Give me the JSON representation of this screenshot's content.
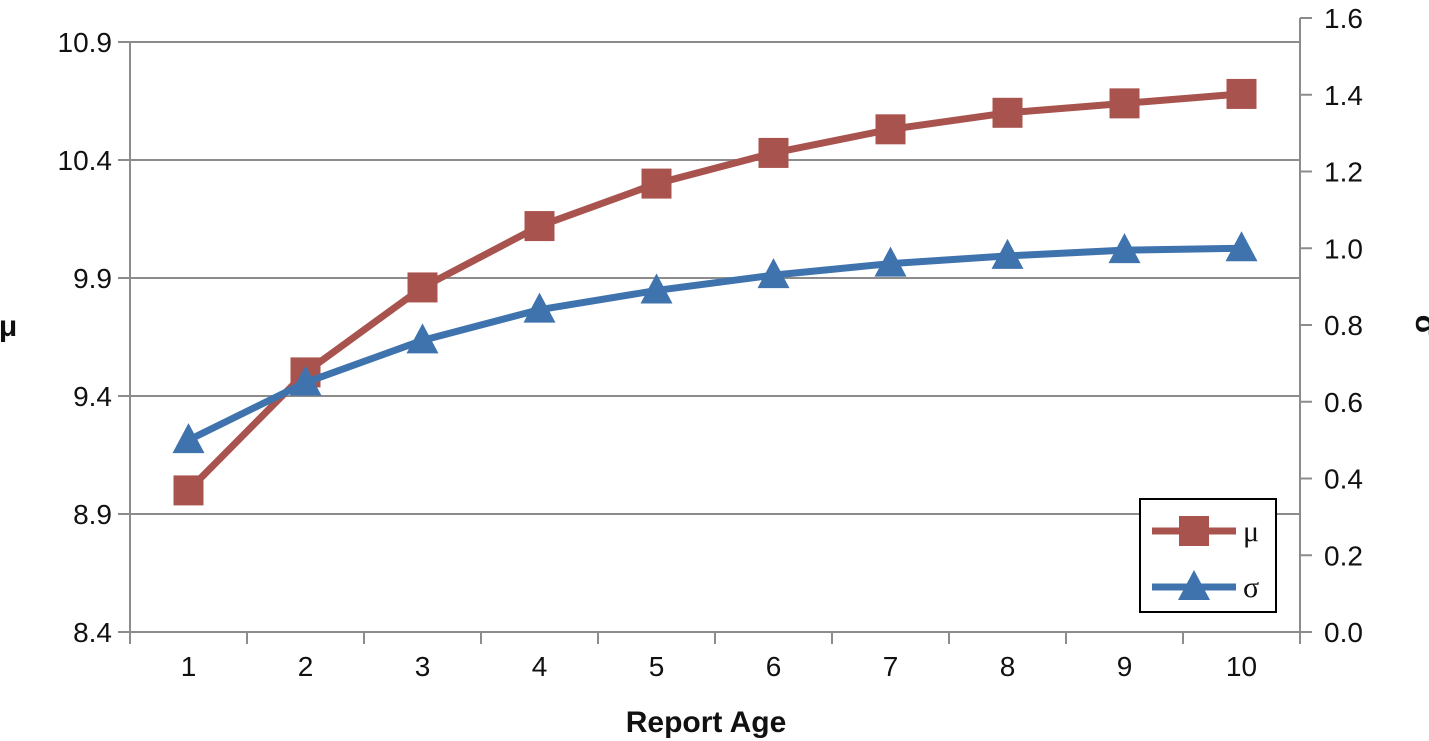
{
  "chart_data": {
    "type": "line",
    "x": [
      1,
      2,
      3,
      4,
      5,
      6,
      7,
      8,
      9,
      10
    ],
    "xlabel": "Report Age",
    "ylabel_left": "μ",
    "ylabel_right": "σ",
    "ylim_left": [
      8.4,
      10.9
    ],
    "ylim_right": [
      0.0,
      1.6
    ],
    "yticks_left": [
      "8.4",
      "8.9",
      "9.4",
      "9.9",
      "10.4",
      "10.9"
    ],
    "yticks_right": [
      "0.0",
      "0.2",
      "0.4",
      "0.6",
      "0.8",
      "1.0",
      "1.2",
      "1.4",
      "1.6"
    ],
    "grid": true,
    "legend_position": "bottom-right",
    "series": [
      {
        "name": "μ",
        "axis": "left",
        "marker": "square",
        "color": "#A9534E",
        "values": [
          9.0,
          9.5,
          9.86,
          10.12,
          10.3,
          10.43,
          10.53,
          10.6,
          10.64,
          10.68
        ]
      },
      {
        "name": "σ",
        "axis": "right",
        "marker": "triangle",
        "color": "#3F73AE",
        "values": [
          0.5,
          0.65,
          0.76,
          0.84,
          0.89,
          0.93,
          0.96,
          0.98,
          0.995,
          1.0
        ]
      }
    ]
  }
}
